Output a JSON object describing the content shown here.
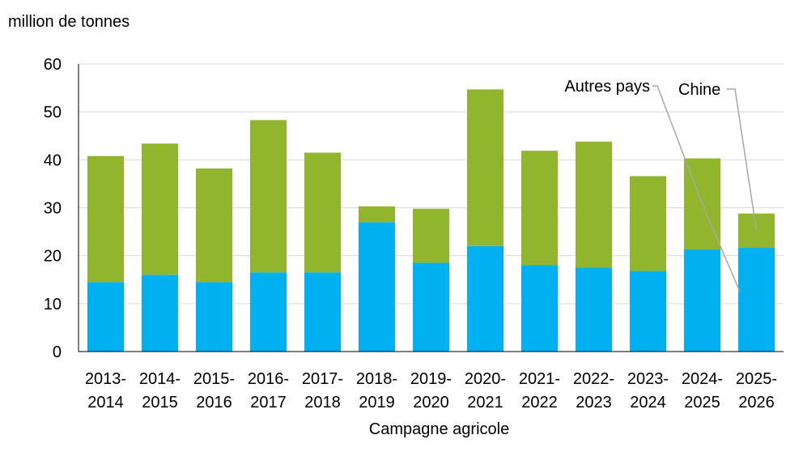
{
  "chart_data": {
    "type": "bar",
    "stacked": true,
    "title": "",
    "ylabel": "million de tonnes",
    "xlabel": "Campagne agricole",
    "ylim": [
      0,
      60
    ],
    "yticks": [
      0,
      10,
      20,
      30,
      40,
      50,
      60
    ],
    "grid": true,
    "legend_placement": "top-right, callout labels",
    "categories": [
      [
        "2013-",
        "2014"
      ],
      [
        "2014-",
        "2015"
      ],
      [
        "2015-",
        "2016"
      ],
      [
        "2016-",
        "2017"
      ],
      [
        "2017-",
        "2018"
      ],
      [
        "2018-",
        "2019"
      ],
      [
        "2019-",
        "2020"
      ],
      [
        "2020-",
        "2021"
      ],
      [
        "2021-",
        "2022"
      ],
      [
        "2022-",
        "2023"
      ],
      [
        "2023-",
        "2024"
      ],
      [
        "2024-",
        "2025"
      ],
      [
        "2025-",
        "2026"
      ]
    ],
    "series": [
      {
        "name": "Chine",
        "color": "#00b0f0",
        "values": [
          14.5,
          16.0,
          14.5,
          16.5,
          16.5,
          27.0,
          18.5,
          22.0,
          18.0,
          17.5,
          16.8,
          21.3,
          21.7
        ]
      },
      {
        "name": "Autres pays",
        "color": "#92b52e",
        "values": [
          26.3,
          27.4,
          23.7,
          31.8,
          25.0,
          3.3,
          11.3,
          32.7,
          23.9,
          26.3,
          19.8,
          19.0,
          7.1
        ]
      }
    ]
  }
}
